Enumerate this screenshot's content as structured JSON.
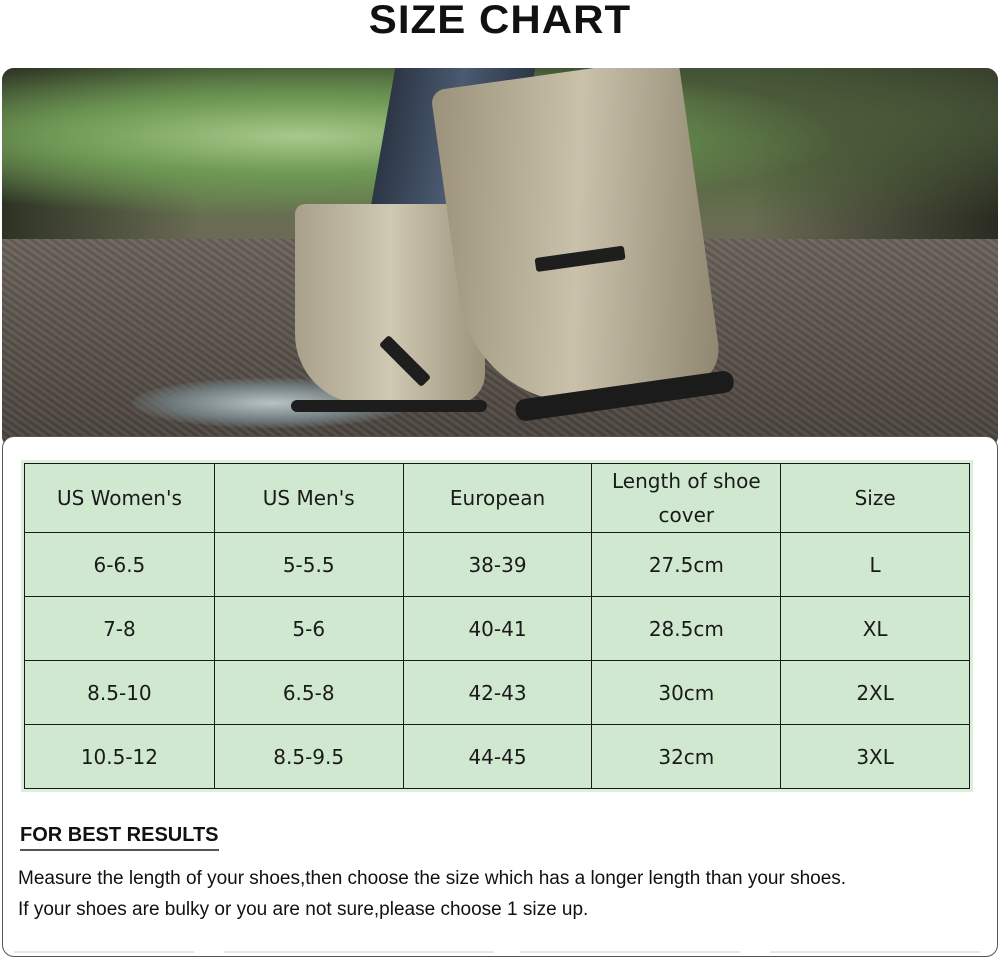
{
  "title": "SIZE CHART",
  "table": {
    "headers": [
      "US Women's",
      "US Men's",
      "European",
      "Length of shoe cover",
      "Size"
    ],
    "rows": [
      [
        "6-6.5",
        "5-5.5",
        "38-39",
        "27.5cm",
        "L"
      ],
      [
        "7-8",
        "5-6",
        "40-41",
        "28.5cm",
        "XL"
      ],
      [
        "8.5-10",
        "6.5-8",
        "42-43",
        "30cm",
        "2XL"
      ],
      [
        "10.5-12",
        "8.5-9.5",
        "44-45",
        "32cm",
        "3XL"
      ]
    ],
    "background_color": "#cfe8cf"
  },
  "tips": {
    "heading": "FOR BEST RESULTS",
    "line1": "Measure the length of your shoes,then choose the size which has a longer length than your shoes.",
    "line2": "If your shoes are bulky or you are not sure,please choose 1 size up."
  }
}
